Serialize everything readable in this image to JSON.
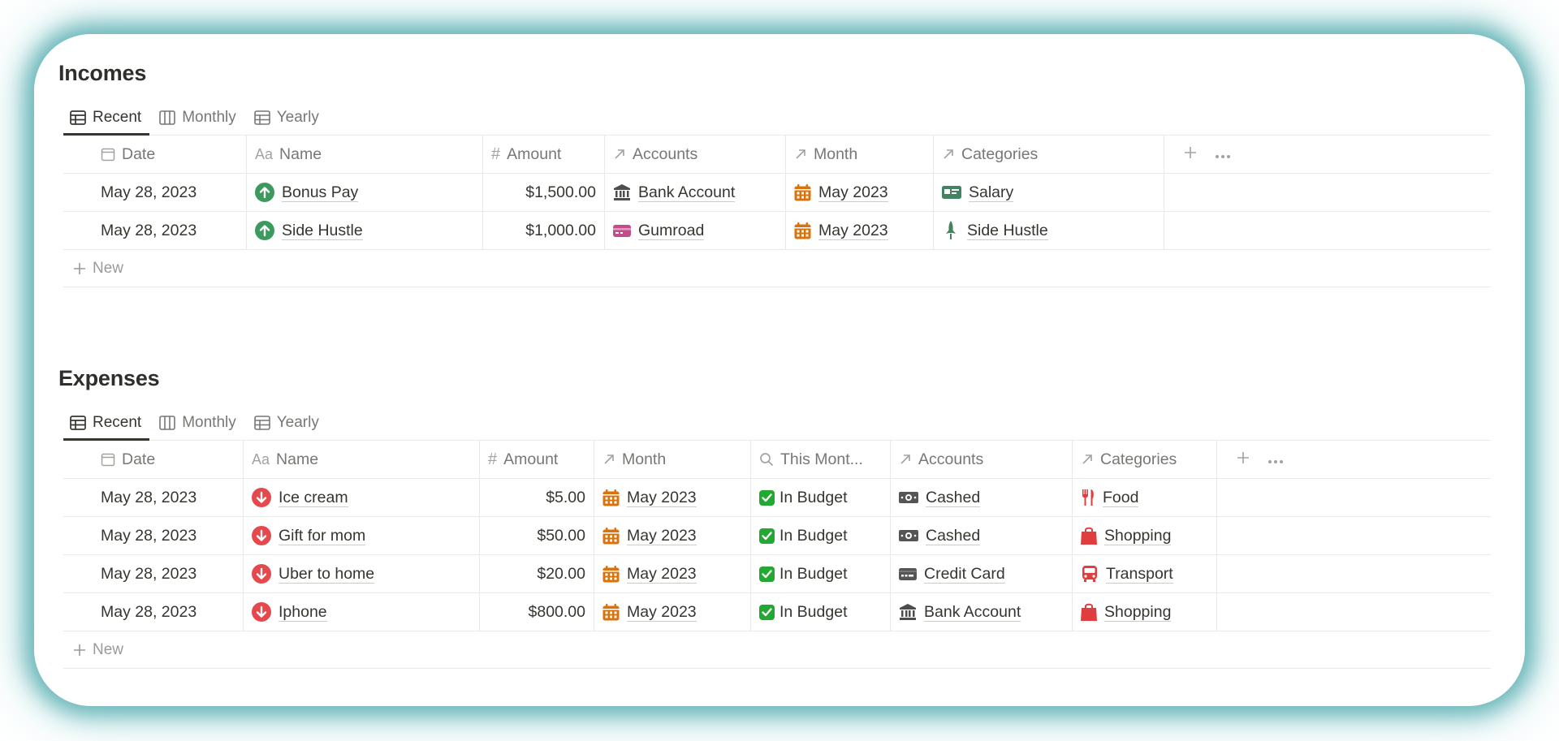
{
  "incomes": {
    "title": "Incomes",
    "views": [
      "Recent",
      "Monthly",
      "Yearly"
    ],
    "columns": [
      "Date",
      "Name",
      "Amount",
      "Accounts",
      "Month",
      "Categories"
    ],
    "rows": [
      {
        "date": "May 28, 2023",
        "name": "Bonus Pay",
        "amount": "$1,500.00",
        "account": "Bank Account",
        "account_icon": "bank-icon",
        "month": "May 2023",
        "category": "Salary",
        "category_icon": "salary-card-icon"
      },
      {
        "date": "May 28, 2023",
        "name": "Side Hustle",
        "amount": "$1,000.00",
        "account": "Gumroad",
        "account_icon": "gumroad-card-icon",
        "month": "May 2023",
        "category": "Side Hustle",
        "category_icon": "rocket-icon"
      }
    ],
    "new_label": "New"
  },
  "expenses": {
    "title": "Expenses",
    "views": [
      "Recent",
      "Monthly",
      "Yearly"
    ],
    "columns": [
      "Date",
      "Name",
      "Amount",
      "Month",
      "This Mont...",
      "Accounts",
      "Categories"
    ],
    "rows": [
      {
        "date": "May 28, 2023",
        "name": "Ice cream",
        "amount": "$5.00",
        "month": "May 2023",
        "budget": "In Budget",
        "account": "Cashed",
        "account_icon": "cash-icon",
        "category": "Food",
        "category_icon": "fork-knife-icon"
      },
      {
        "date": "May 28, 2023",
        "name": "Gift for mom",
        "amount": "$50.00",
        "month": "May 2023",
        "budget": "In Budget",
        "account": "Cashed",
        "account_icon": "cash-icon",
        "category": "Shopping",
        "category_icon": "shopping-bag-icon"
      },
      {
        "date": "May 28, 2023",
        "name": "Uber to home",
        "amount": "$20.00",
        "month": "May 2023",
        "budget": "In Budget",
        "account": "Credit Card",
        "account_icon": "credit-card-icon",
        "category": "Transport",
        "category_icon": "bus-icon"
      },
      {
        "date": "May 28, 2023",
        "name": "Iphone",
        "amount": "$800.00",
        "month": "May 2023",
        "budget": "In Budget",
        "account": "Bank Account",
        "account_icon": "bank-icon",
        "category": "Shopping",
        "category_icon": "shopping-bag-icon"
      }
    ],
    "new_label": "New"
  },
  "colors": {
    "income_arrow": "#3d9a5f",
    "expense_arrow": "#e5484d",
    "calendar": "#d9730d",
    "budget_check": "#22a833",
    "category_red": "#e03e3e",
    "category_green": "#448361"
  }
}
